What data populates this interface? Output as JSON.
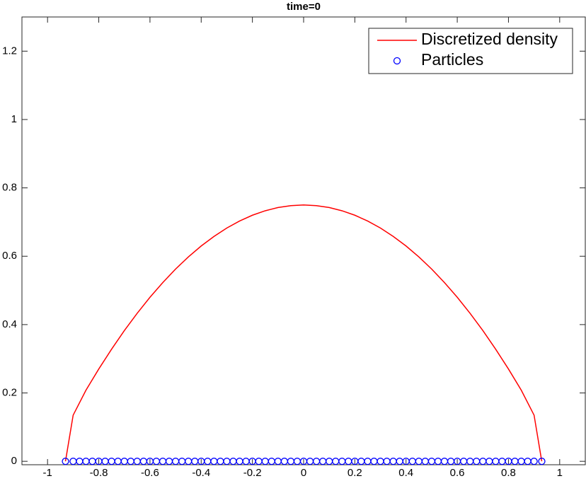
{
  "chart_data": {
    "type": "line",
    "title": "time=0",
    "xlim": [
      -1.1,
      1.1
    ],
    "ylim": [
      -0.01,
      1.3
    ],
    "xticks": [
      -1,
      -0.8,
      -0.6,
      -0.4,
      -0.2,
      0,
      0.2,
      0.4,
      0.6,
      0.8,
      1
    ],
    "yticks": [
      0,
      0.2,
      0.4,
      0.6,
      0.8,
      1,
      1.2
    ],
    "legend": "top-right",
    "series": [
      {
        "name": "Discretized density",
        "type": "line",
        "color": "#ff0000",
        "x": [
          -0.93,
          -0.9,
          -0.85,
          -0.8,
          -0.75,
          -0.7,
          -0.65,
          -0.6,
          -0.55,
          -0.5,
          -0.45,
          -0.4,
          -0.35,
          -0.3,
          -0.25,
          -0.2,
          -0.15,
          -0.1,
          -0.05,
          0,
          0.05,
          0.1,
          0.15,
          0.2,
          0.25,
          0.3,
          0.35,
          0.4,
          0.45,
          0.5,
          0.55,
          0.6,
          0.65,
          0.7,
          0.75,
          0.8,
          0.85,
          0.9,
          0.93
        ],
        "values": [
          0,
          0.135,
          0.208,
          0.27,
          0.328,
          0.3825,
          0.433,
          0.48,
          0.523,
          0.5625,
          0.598,
          0.63,
          0.658,
          0.6825,
          0.703,
          0.72,
          0.733,
          0.7425,
          0.748,
          0.75,
          0.748,
          0.7425,
          0.733,
          0.72,
          0.703,
          0.6825,
          0.658,
          0.63,
          0.598,
          0.5625,
          0.523,
          0.48,
          0.433,
          0.3825,
          0.328,
          0.27,
          0.208,
          0.135,
          0
        ]
      },
      {
        "name": "Particles",
        "type": "scatter",
        "color": "#0000ff",
        "x": [
          -0.93,
          -0.9,
          -0.875,
          -0.85,
          -0.825,
          -0.8,
          -0.775,
          -0.75,
          -0.725,
          -0.7,
          -0.675,
          -0.65,
          -0.625,
          -0.6,
          -0.575,
          -0.55,
          -0.525,
          -0.5,
          -0.475,
          -0.45,
          -0.425,
          -0.4,
          -0.375,
          -0.35,
          -0.325,
          -0.3,
          -0.275,
          -0.25,
          -0.225,
          -0.2,
          -0.175,
          -0.15,
          -0.125,
          -0.1,
          -0.075,
          -0.05,
          -0.025,
          0,
          0.025,
          0.05,
          0.075,
          0.1,
          0.125,
          0.15,
          0.175,
          0.2,
          0.225,
          0.25,
          0.275,
          0.3,
          0.325,
          0.35,
          0.375,
          0.4,
          0.425,
          0.45,
          0.475,
          0.5,
          0.525,
          0.55,
          0.575,
          0.6,
          0.625,
          0.65,
          0.675,
          0.7,
          0.725,
          0.75,
          0.775,
          0.8,
          0.825,
          0.85,
          0.875,
          0.9,
          0.93
        ],
        "values": [
          0,
          0,
          0,
          0,
          0,
          0,
          0,
          0,
          0,
          0,
          0,
          0,
          0,
          0,
          0,
          0,
          0,
          0,
          0,
          0,
          0,
          0,
          0,
          0,
          0,
          0,
          0,
          0,
          0,
          0,
          0,
          0,
          0,
          0,
          0,
          0,
          0,
          0,
          0,
          0,
          0,
          0,
          0,
          0,
          0,
          0,
          0,
          0,
          0,
          0,
          0,
          0,
          0,
          0,
          0,
          0,
          0,
          0,
          0,
          0,
          0,
          0,
          0,
          0,
          0,
          0,
          0,
          0,
          0,
          0,
          0,
          0,
          0,
          0,
          0
        ]
      }
    ]
  }
}
